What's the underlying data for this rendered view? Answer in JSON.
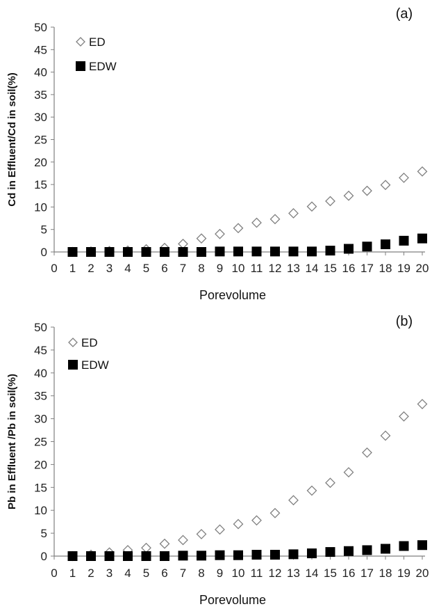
{
  "chart_data": [
    {
      "type": "scatter",
      "panel_label": "(a)",
      "xlabel": "Porevolume",
      "ylabel": "Cd in Effluent/Cd in soil(%)",
      "xlim": [
        0,
        20
      ],
      "ylim": [
        0,
        50
      ],
      "x_ticks": [
        0,
        1,
        2,
        3,
        4,
        5,
        6,
        7,
        8,
        9,
        10,
        11,
        12,
        13,
        14,
        15,
        16,
        17,
        18,
        19,
        20
      ],
      "y_ticks": [
        0,
        5,
        10,
        15,
        20,
        25,
        30,
        35,
        40,
        45,
        50
      ],
      "grid": false,
      "legend_position": "top-left",
      "series": [
        {
          "name": "ED",
          "marker": "open-diamond",
          "color": "#808080",
          "x": [
            1,
            2,
            3,
            4,
            5,
            6,
            7,
            8,
            9,
            10,
            11,
            12,
            13,
            14,
            15,
            16,
            17,
            18,
            19,
            20
          ],
          "y": [
            0.0,
            0.1,
            0.2,
            0.3,
            0.6,
            0.9,
            1.8,
            3.0,
            4.0,
            5.3,
            6.5,
            7.3,
            8.6,
            10.1,
            11.3,
            12.5,
            13.6,
            14.9,
            16.5,
            17.9
          ]
        },
        {
          "name": "EDW",
          "marker": "filled-square",
          "color": "#000000",
          "x": [
            1,
            2,
            3,
            4,
            5,
            6,
            7,
            8,
            9,
            10,
            11,
            12,
            13,
            14,
            15,
            16,
            17,
            18,
            19,
            20
          ],
          "y": [
            0.0,
            0.0,
            0.0,
            0.0,
            0.0,
            0.0,
            0.0,
            0.0,
            0.1,
            0.1,
            0.1,
            0.1,
            0.1,
            0.1,
            0.3,
            0.7,
            1.2,
            1.7,
            2.5,
            3.0
          ]
        }
      ]
    },
    {
      "type": "scatter",
      "panel_label": "(b)",
      "xlabel": "Porevolume",
      "ylabel": "Pb in Effluent /Pb in soil(%)",
      "xlim": [
        0,
        20
      ],
      "ylim": [
        0,
        50
      ],
      "x_ticks": [
        0,
        1,
        2,
        3,
        4,
        5,
        6,
        7,
        8,
        9,
        10,
        11,
        12,
        13,
        14,
        15,
        16,
        17,
        18,
        19,
        20
      ],
      "y_ticks": [
        0,
        5,
        10,
        15,
        20,
        25,
        30,
        35,
        40,
        45,
        50
      ],
      "grid": false,
      "legend_position": "top-left",
      "series": [
        {
          "name": "ED",
          "marker": "open-diamond",
          "color": "#808080",
          "x": [
            1,
            2,
            3,
            4,
            5,
            6,
            7,
            8,
            9,
            10,
            11,
            12,
            13,
            14,
            15,
            16,
            17,
            18,
            19,
            20
          ],
          "y": [
            0.0,
            0.3,
            0.8,
            1.3,
            1.8,
            2.7,
            3.5,
            4.8,
            5.8,
            7.0,
            7.8,
            9.4,
            12.2,
            14.3,
            16.0,
            18.3,
            22.6,
            26.3,
            30.5,
            33.2
          ]
        },
        {
          "name": "EDW",
          "marker": "filled-square",
          "color": "#000000",
          "x": [
            1,
            2,
            3,
            4,
            5,
            6,
            7,
            8,
            9,
            10,
            11,
            12,
            13,
            14,
            15,
            16,
            17,
            18,
            19,
            20
          ],
          "y": [
            0.0,
            0.0,
            0.0,
            0.0,
            0.0,
            0.0,
            0.1,
            0.1,
            0.2,
            0.2,
            0.3,
            0.3,
            0.4,
            0.6,
            0.9,
            1.1,
            1.3,
            1.6,
            2.2,
            2.4
          ]
        }
      ]
    }
  ]
}
